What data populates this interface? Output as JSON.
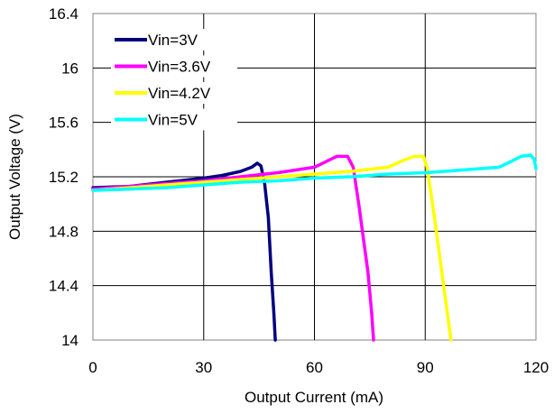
{
  "chart_data": {
    "type": "line",
    "title": "",
    "xlabel": "Output Current (mA)",
    "ylabel": "Output Voltage (V)",
    "xlim": [
      0,
      120
    ],
    "ylim": [
      14,
      16.4
    ],
    "xticks": [
      0,
      30,
      60,
      90,
      120
    ],
    "yticks": [
      14,
      14.4,
      14.8,
      15.2,
      15.6,
      16,
      16.4
    ],
    "xtick_labels": [
      "0",
      "30",
      "60",
      "90",
      "120"
    ],
    "ytick_labels": [
      "14",
      "14.4",
      "14.8",
      "15.2",
      "15.6",
      "16",
      "16.4"
    ],
    "grid": true,
    "legend_position": "top-left",
    "series": [
      {
        "name": "Vin=3V",
        "color": "#000080",
        "points": [
          [
            0,
            15.12
          ],
          [
            10,
            15.13
          ],
          [
            20,
            15.16
          ],
          [
            30,
            15.19
          ],
          [
            35,
            15.21
          ],
          [
            40,
            15.24
          ],
          [
            43,
            15.27
          ],
          [
            44.5,
            15.3
          ],
          [
            45.5,
            15.28
          ],
          [
            46.5,
            15.15
          ],
          [
            47.5,
            14.9
          ],
          [
            48.3,
            14.5
          ],
          [
            49,
            14.2
          ],
          [
            49.4,
            14
          ]
        ]
      },
      {
        "name": "Vin=3.6V",
        "color": "#ff00ff",
        "points": [
          [
            0,
            15.11
          ],
          [
            10,
            15.13
          ],
          [
            20,
            15.15
          ],
          [
            30,
            15.17
          ],
          [
            40,
            15.2
          ],
          [
            50,
            15.23
          ],
          [
            60,
            15.27
          ],
          [
            63,
            15.31
          ],
          [
            66,
            15.35
          ],
          [
            69,
            15.35
          ],
          [
            70.5,
            15.27
          ],
          [
            72,
            15.0
          ],
          [
            73.5,
            14.7
          ],
          [
            74.5,
            14.5
          ],
          [
            75.5,
            14.2
          ],
          [
            76,
            14
          ]
        ]
      },
      {
        "name": "Vin=4.2V",
        "color": "#ffff00",
        "points": [
          [
            0,
            15.1
          ],
          [
            10,
            15.12
          ],
          [
            20,
            15.14
          ],
          [
            30,
            15.16
          ],
          [
            40,
            15.18
          ],
          [
            50,
            15.2
          ],
          [
            60,
            15.22
          ],
          [
            70,
            15.24
          ],
          [
            80,
            15.27
          ],
          [
            84,
            15.32
          ],
          [
            87,
            15.35
          ],
          [
            89.5,
            15.35
          ],
          [
            90.5,
            15.27
          ],
          [
            92,
            15.0
          ],
          [
            93.5,
            14.7
          ],
          [
            95,
            14.4
          ],
          [
            96.5,
            14.1
          ],
          [
            97,
            14
          ]
        ]
      },
      {
        "name": "Vin=5V",
        "color": "#00ffff",
        "points": [
          [
            0,
            15.1
          ],
          [
            10,
            15.11
          ],
          [
            20,
            15.12
          ],
          [
            30,
            15.14
          ],
          [
            40,
            15.16
          ],
          [
            50,
            15.17
          ],
          [
            60,
            15.19
          ],
          [
            70,
            15.2
          ],
          [
            80,
            15.22
          ],
          [
            90,
            15.23
          ],
          [
            100,
            15.25
          ],
          [
            110,
            15.27
          ],
          [
            113,
            15.31
          ],
          [
            116,
            15.35
          ],
          [
            118.5,
            15.36
          ],
          [
            119.5,
            15.33
          ],
          [
            120,
            15.26
          ]
        ]
      }
    ]
  }
}
